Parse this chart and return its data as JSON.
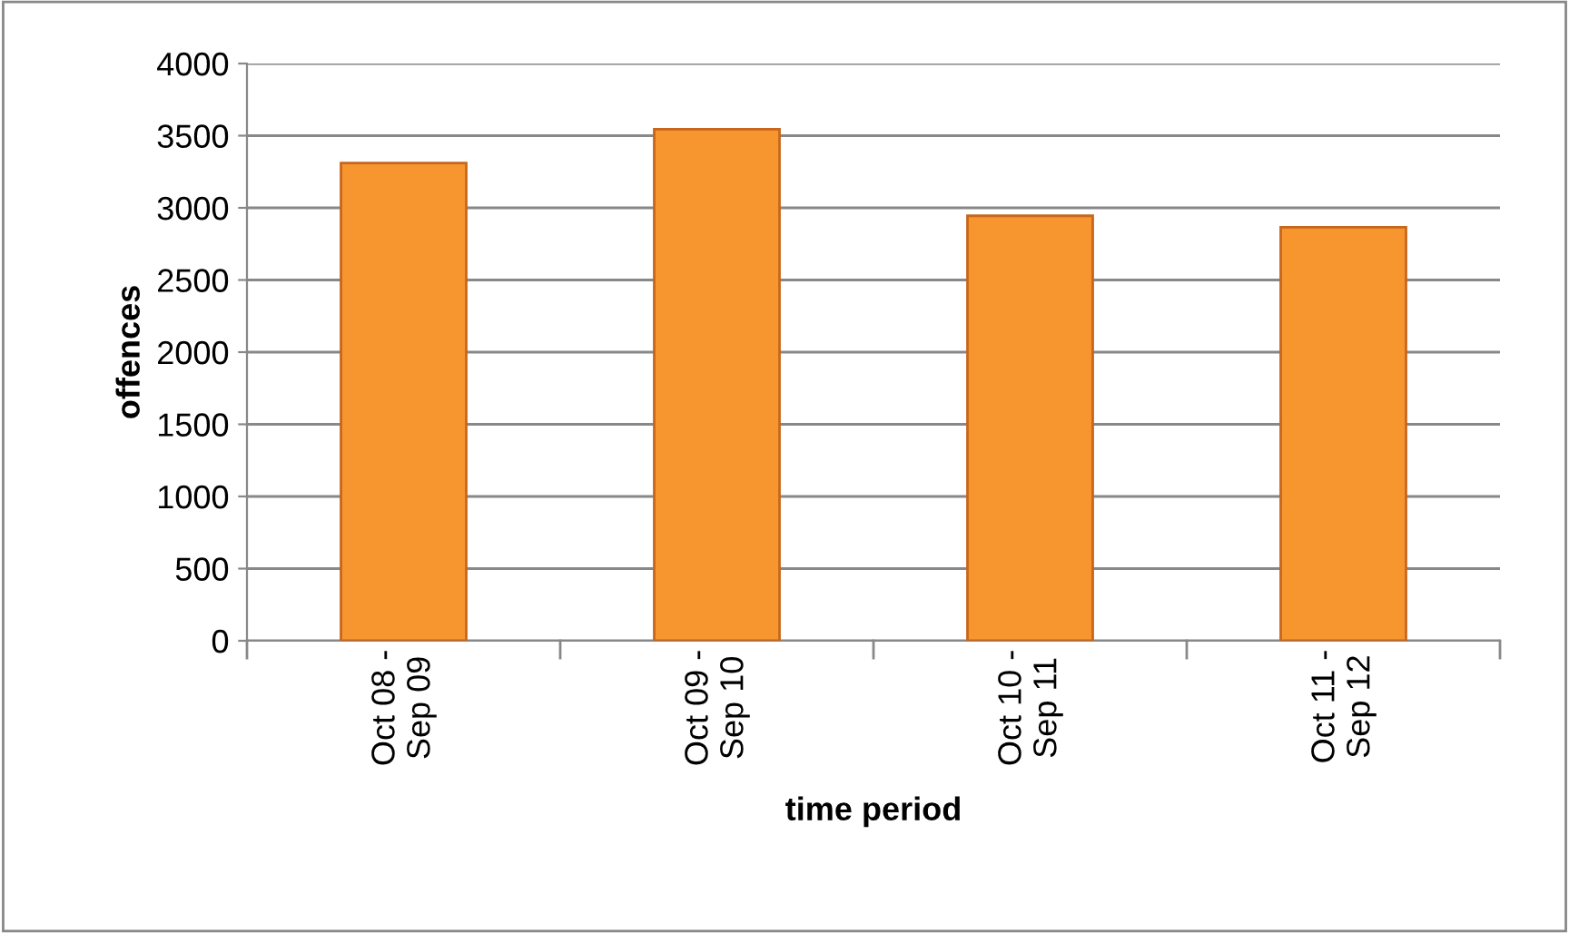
{
  "chart_data": {
    "type": "bar",
    "xlabel": "time period",
    "ylabel": "offences",
    "categories": [
      "Oct 08 -\nSep 09",
      "Oct 09 -\nSep 10",
      "Oct 10 -\nSep 11",
      "Oct 11 -\nSep 12"
    ],
    "values": [
      3310,
      3545,
      2945,
      2865
    ],
    "color": "#f7952f",
    "ylim": [
      0,
      4000
    ],
    "yticks": [
      0,
      500,
      1000,
      1500,
      2000,
      2500,
      3000,
      3500,
      4000
    ],
    "grid": "y",
    "legend": false
  }
}
